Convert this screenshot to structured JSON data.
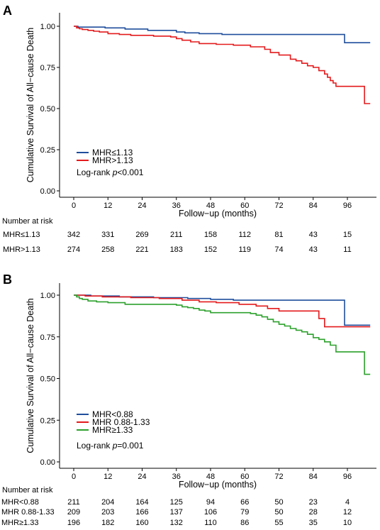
{
  "chart_data": [
    {
      "panel": "A",
      "type": "line",
      "xlabel": "Follow−up (months)",
      "ylabel": "Cumulative Survival of All−cause Death",
      "xticks": [
        0,
        12,
        24,
        36,
        48,
        60,
        72,
        84,
        96
      ],
      "yticks": [
        "0.00",
        "0.25",
        "0.50",
        "0.75",
        "1.00"
      ],
      "xlim": [
        0,
        105
      ],
      "ylim": [
        0,
        1
      ],
      "grid": false,
      "legend_position": "bottom-left",
      "annotation": {
        "prefix": "Log-rank  ",
        "p": "p",
        "value": "<0.001"
      },
      "series": [
        {
          "name": "MHR≤1.13",
          "color": "#1f4e9c",
          "x": [
            0,
            1.5,
            11,
            18,
            26,
            36,
            39,
            44,
            52,
            94,
            95,
            104
          ],
          "y": [
            1.0,
            0.995,
            0.99,
            0.983,
            0.975,
            0.965,
            0.96,
            0.955,
            0.95,
            0.95,
            0.9,
            0.9
          ]
        },
        {
          "name": "MHR>1.13",
          "color": "#e41a1c",
          "x": [
            0,
            1,
            2,
            3,
            5,
            7,
            9,
            12,
            16,
            20,
            28,
            34,
            36,
            38,
            41,
            44,
            50,
            56,
            62,
            67,
            69,
            72,
            76,
            78,
            80,
            82,
            84,
            86,
            88,
            89,
            90,
            91,
            92,
            98,
            102,
            104
          ],
          "y": [
            1.0,
            0.99,
            0.985,
            0.98,
            0.975,
            0.97,
            0.965,
            0.955,
            0.95,
            0.945,
            0.94,
            0.935,
            0.925,
            0.915,
            0.905,
            0.895,
            0.89,
            0.885,
            0.875,
            0.86,
            0.84,
            0.825,
            0.8,
            0.79,
            0.775,
            0.76,
            0.75,
            0.73,
            0.71,
            0.69,
            0.67,
            0.655,
            0.635,
            0.635,
            0.53,
            0.53
          ]
        }
      ],
      "risk_table": {
        "title": "Number at risk",
        "rows": [
          {
            "label": "MHR≤1.13",
            "values": [
              "342",
              "331",
              "269",
              "211",
              "158",
              "112",
              "81",
              "43",
              "15"
            ]
          },
          {
            "label": "MHR>1.13",
            "values": [
              "274",
              "258",
              "221",
              "183",
              "152",
              "119",
              "74",
              "43",
              "11"
            ]
          }
        ]
      }
    },
    {
      "panel": "B",
      "type": "line",
      "xlabel": "Follow−up (months)",
      "ylabel": "Cumulative Survival of All−cause Death",
      "xticks": [
        0,
        12,
        24,
        36,
        48,
        60,
        72,
        84,
        96
      ],
      "yticks": [
        "0.00",
        "0.25",
        "0.50",
        "0.75",
        "1.00"
      ],
      "xlim": [
        0,
        105
      ],
      "ylim": [
        0,
        1
      ],
      "grid": false,
      "legend_position": "bottom-left",
      "annotation": {
        "prefix": "Log-rank  ",
        "p": "p",
        "value": "=0.001"
      },
      "series": [
        {
          "name": "MHR<0.88",
          "color": "#1f4e9c",
          "x": [
            0,
            6,
            16,
            28,
            40,
            48,
            56,
            94,
            95,
            104
          ],
          "y": [
            1.0,
            0.995,
            0.99,
            0.985,
            0.98,
            0.975,
            0.97,
            0.97,
            0.82,
            0.82
          ]
        },
        {
          "name": "MHR 0.88-1.33",
          "color": "#e41a1c",
          "x": [
            0,
            4,
            10,
            20,
            30,
            38,
            44,
            50,
            58,
            64,
            68,
            72,
            84,
            86,
            88,
            104
          ],
          "y": [
            1.0,
            0.995,
            0.99,
            0.985,
            0.98,
            0.97,
            0.96,
            0.955,
            0.945,
            0.935,
            0.92,
            0.905,
            0.905,
            0.86,
            0.81,
            0.81
          ]
        },
        {
          "name": "MHR≥1.33",
          "color": "#2ca02c",
          "x": [
            0,
            1,
            2,
            3,
            5,
            8,
            12,
            18,
            36,
            38,
            40,
            42,
            44,
            46,
            48,
            62,
            64,
            66,
            68,
            70,
            72,
            74,
            76,
            78,
            80,
            82,
            84,
            86,
            88,
            90,
            92,
            102,
            104
          ],
          "y": [
            1.0,
            0.99,
            0.98,
            0.975,
            0.965,
            0.96,
            0.955,
            0.945,
            0.94,
            0.93,
            0.925,
            0.92,
            0.91,
            0.905,
            0.895,
            0.89,
            0.88,
            0.87,
            0.855,
            0.84,
            0.825,
            0.815,
            0.8,
            0.79,
            0.78,
            0.765,
            0.745,
            0.735,
            0.72,
            0.7,
            0.66,
            0.525,
            0.525
          ]
        }
      ],
      "risk_table": {
        "title": "Number at risk",
        "rows": [
          {
            "label": "MHR<0.88",
            "values": [
              "211",
              "204",
              "164",
              "125",
              "94",
              "66",
              "50",
              "23",
              "4"
            ]
          },
          {
            "label": "MHR 0.88-1.33",
            "values": [
              "209",
              "203",
              "166",
              "137",
              "106",
              "79",
              "50",
              "28",
              "12"
            ]
          },
          {
            "label": "MHR≥1.33",
            "values": [
              "196",
              "182",
              "160",
              "132",
              "110",
              "86",
              "55",
              "35",
              "10"
            ]
          }
        ]
      }
    }
  ]
}
